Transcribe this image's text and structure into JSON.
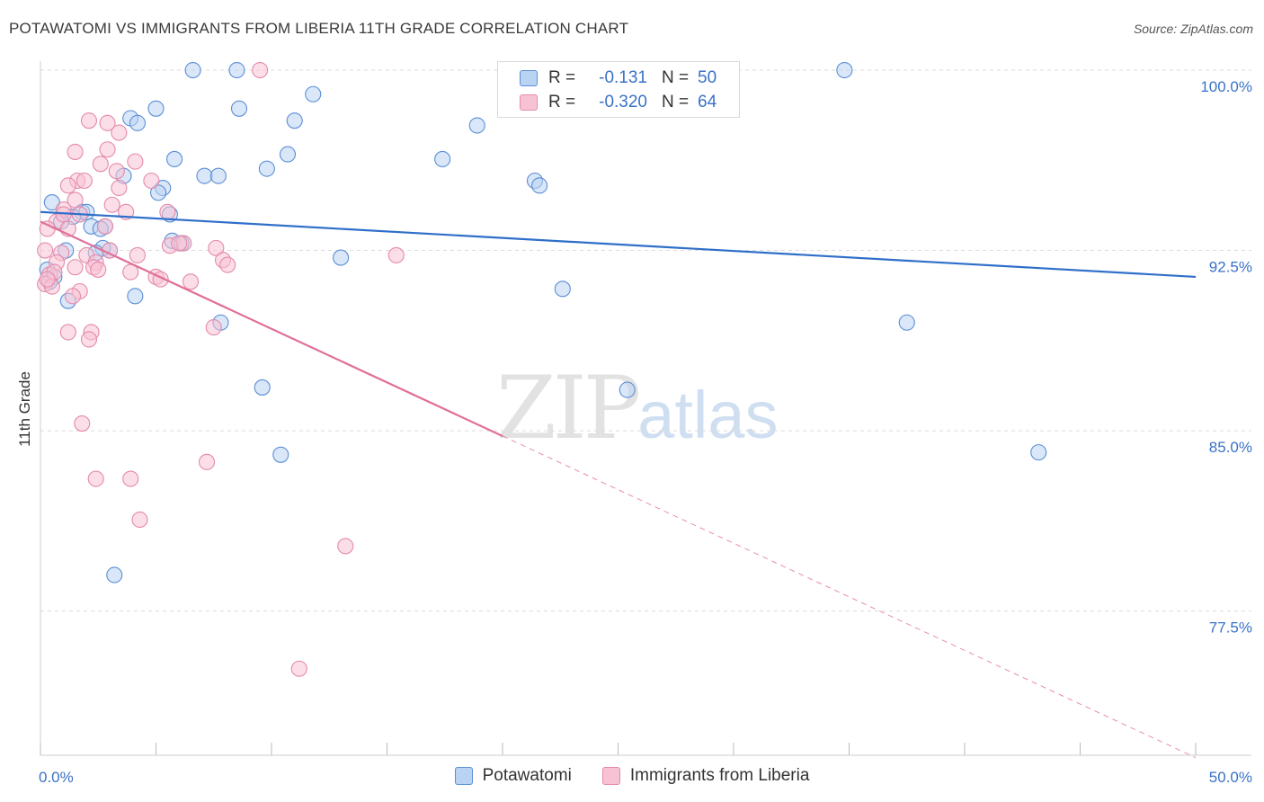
{
  "header": {
    "title": "POTAWATOMI VS IMMIGRANTS FROM LIBERIA 11TH GRADE CORRELATION CHART",
    "source": "Source: ZipAtlas.com"
  },
  "watermark": {
    "zip": "ZIP",
    "atlas": "atlas"
  },
  "legend_top": {
    "rows": [
      {
        "r_label": "R =",
        "r_value": "-0.131",
        "n_label": "N =",
        "n_value": "50"
      },
      {
        "r_label": "R =",
        "r_value": "-0.320",
        "n_label": "N =",
        "n_value": "64"
      }
    ]
  },
  "legend_bottom": {
    "items": [
      "Potawatomi",
      "Immigrants from Liberia"
    ]
  },
  "colors": {
    "blue_fill": "#b9d3f3",
    "blue_stroke": "#5b8fd6",
    "blue_line": "#2f6fc9",
    "pink_fill": "#f7c3d4",
    "pink_stroke": "#e48aaa",
    "pink_line": "#e0709a",
    "tick_text": "#3a72c7",
    "grid": "#dcdcdc"
  },
  "chart_data": {
    "type": "scatter",
    "title": "POTAWATOMI VS IMMIGRANTS FROM LIBERIA 11TH GRADE CORRELATION CHART",
    "xlabel": "",
    "ylabel": "11th Grade",
    "xlim": [
      0,
      50
    ],
    "ylim": [
      71.5,
      100.3
    ],
    "x_tick_labels": [
      "0.0%",
      "50.0%"
    ],
    "y_ticks": [
      100,
      92.5,
      85,
      77.5
    ],
    "y_tick_labels": [
      "100.0%",
      "92.5%",
      "85.0%",
      "77.5%"
    ],
    "series": [
      {
        "name": "Potawatomi",
        "color": "blue",
        "R": -0.131,
        "N": 50,
        "trend": {
          "x0": 0,
          "y0": 94.1,
          "x1": 50,
          "y1": 91.4,
          "dashed_from": null
        },
        "points": [
          [
            6.6,
            100.0
          ],
          [
            8.5,
            100.0
          ],
          [
            34.8,
            100.0
          ],
          [
            11.8,
            99.0
          ],
          [
            5.0,
            98.4
          ],
          [
            8.6,
            98.4
          ],
          [
            11.0,
            97.9
          ],
          [
            3.9,
            98.0
          ],
          [
            4.2,
            97.8
          ],
          [
            18.9,
            97.7
          ],
          [
            10.7,
            96.5
          ],
          [
            5.8,
            96.3
          ],
          [
            17.4,
            96.3
          ],
          [
            9.8,
            95.9
          ],
          [
            3.6,
            95.6
          ],
          [
            7.1,
            95.6
          ],
          [
            7.7,
            95.6
          ],
          [
            21.4,
            95.4
          ],
          [
            21.6,
            95.2
          ],
          [
            5.3,
            95.1
          ],
          [
            5.1,
            94.9
          ],
          [
            0.5,
            94.5
          ],
          [
            1.8,
            94.1
          ],
          [
            2.0,
            94.1
          ],
          [
            5.6,
            94.0
          ],
          [
            1.4,
            93.9
          ],
          [
            0.9,
            93.7
          ],
          [
            2.2,
            93.5
          ],
          [
            2.8,
            93.5
          ],
          [
            2.6,
            93.4
          ],
          [
            1.1,
            92.5
          ],
          [
            3.0,
            92.5
          ],
          [
            2.7,
            92.6
          ],
          [
            5.7,
            92.9
          ],
          [
            6.1,
            92.8
          ],
          [
            13.0,
            92.2
          ],
          [
            2.4,
            92.4
          ],
          [
            0.3,
            91.7
          ],
          [
            0.6,
            91.4
          ],
          [
            22.6,
            90.9
          ],
          [
            4.1,
            90.6
          ],
          [
            1.2,
            90.4
          ],
          [
            7.8,
            89.5
          ],
          [
            37.5,
            89.5
          ],
          [
            9.6,
            86.8
          ],
          [
            25.4,
            86.7
          ],
          [
            10.4,
            84.0
          ],
          [
            43.2,
            84.1
          ],
          [
            3.2,
            79.0
          ],
          [
            0.4,
            91.2
          ]
        ]
      },
      {
        "name": "Immigrants from Liberia",
        "color": "pink",
        "R": -0.32,
        "N": 64,
        "trend": {
          "x0": 0,
          "y0": 93.7,
          "x1": 50,
          "y1": 71.4,
          "dashed_from": 20.0
        },
        "points": [
          [
            9.5,
            100.0
          ],
          [
            2.1,
            97.9
          ],
          [
            2.9,
            97.8
          ],
          [
            3.4,
            97.4
          ],
          [
            1.5,
            96.6
          ],
          [
            2.9,
            96.7
          ],
          [
            4.1,
            96.2
          ],
          [
            2.6,
            96.1
          ],
          [
            3.3,
            95.8
          ],
          [
            1.6,
            95.4
          ],
          [
            1.9,
            95.4
          ],
          [
            4.8,
            95.4
          ],
          [
            1.2,
            95.2
          ],
          [
            3.4,
            95.1
          ],
          [
            1.5,
            94.6
          ],
          [
            3.1,
            94.4
          ],
          [
            1.0,
            94.2
          ],
          [
            1.7,
            94.0
          ],
          [
            3.7,
            94.1
          ],
          [
            5.5,
            94.1
          ],
          [
            0.7,
            93.7
          ],
          [
            1.2,
            93.4
          ],
          [
            0.3,
            93.4
          ],
          [
            2.8,
            93.5
          ],
          [
            6.2,
            92.8
          ],
          [
            5.6,
            92.7
          ],
          [
            7.6,
            92.6
          ],
          [
            0.2,
            92.5
          ],
          [
            0.9,
            92.4
          ],
          [
            2.0,
            92.3
          ],
          [
            3.0,
            92.5
          ],
          [
            4.2,
            92.3
          ],
          [
            7.9,
            92.1
          ],
          [
            15.4,
            92.3
          ],
          [
            2.4,
            92.0
          ],
          [
            0.7,
            92.0
          ],
          [
            8.1,
            91.9
          ],
          [
            1.5,
            91.8
          ],
          [
            2.3,
            91.8
          ],
          [
            2.5,
            91.7
          ],
          [
            3.9,
            91.6
          ],
          [
            0.4,
            91.5
          ],
          [
            5.0,
            91.4
          ],
          [
            5.2,
            91.3
          ],
          [
            6.5,
            91.2
          ],
          [
            0.2,
            91.1
          ],
          [
            0.5,
            91.0
          ],
          [
            1.7,
            90.8
          ],
          [
            1.4,
            90.6
          ],
          [
            7.5,
            89.3
          ],
          [
            1.2,
            89.1
          ],
          [
            2.2,
            89.1
          ],
          [
            2.1,
            88.8
          ],
          [
            1.8,
            85.3
          ],
          [
            7.2,
            83.7
          ],
          [
            2.4,
            83.0
          ],
          [
            3.9,
            83.0
          ],
          [
            4.3,
            81.3
          ],
          [
            13.2,
            80.2
          ],
          [
            11.2,
            75.1
          ],
          [
            0.6,
            91.6
          ],
          [
            0.3,
            91.3
          ],
          [
            6.0,
            92.8
          ],
          [
            1.0,
            94.0
          ]
        ]
      }
    ]
  }
}
